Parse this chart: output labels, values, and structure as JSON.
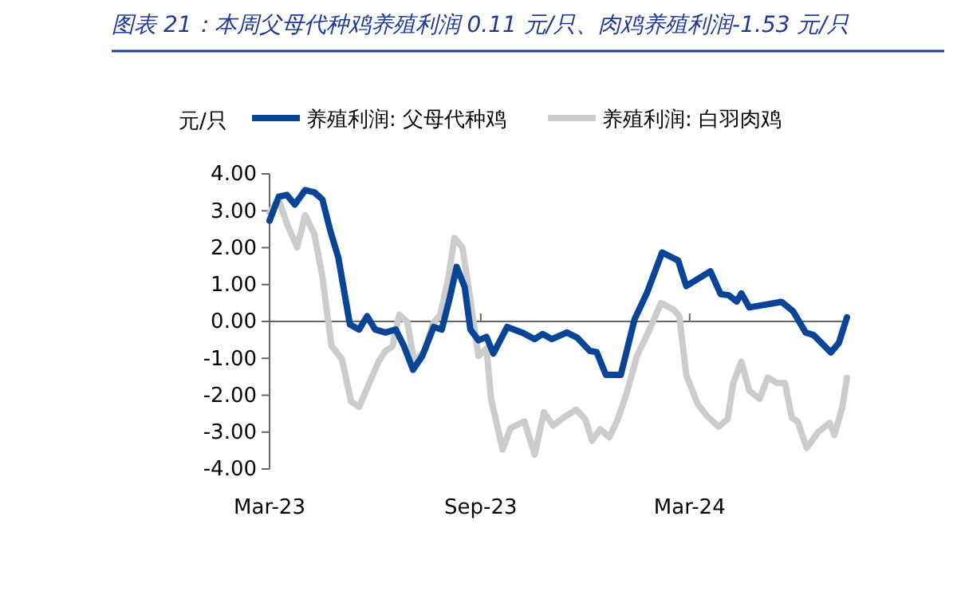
{
  "chart_data": {
    "type": "line",
    "title": "图表 21：本周父母代种鸡养殖利润 0.11 元/只、肉鸡养殖利润-1.53 元/只",
    "ylabel": "元/只",
    "legend": "top",
    "marker": "none",
    "line_style": "solid",
    "xlim": [
      "2023-03-01",
      "2024-07-16"
    ],
    "xticks": [
      {
        "value": "2023-03-01",
        "label": "Mar-23"
      },
      {
        "value": "2023-09-01",
        "label": "Sep-23"
      },
      {
        "value": "2024-03-01",
        "label": "Mar-24"
      }
    ],
    "ylim": [
      -4,
      4
    ],
    "yticks": [
      {
        "value": 4,
        "label": "4.00"
      },
      {
        "value": 3,
        "label": "3.00"
      },
      {
        "value": 2,
        "label": "2.00"
      },
      {
        "value": 1,
        "label": "1.00"
      },
      {
        "value": 0,
        "label": "0.00"
      },
      {
        "value": -1,
        "label": "-1.00"
      },
      {
        "value": -2,
        "label": "-2.00"
      },
      {
        "value": -3,
        "label": "-3.00"
      },
      {
        "value": -4,
        "label": "-4.00"
      }
    ],
    "series": [
      {
        "name": "养殖利润: 父母代种鸡",
        "color": "#0a4595",
        "x": [
          "2023-03-01",
          "2023-03-09",
          "2023-03-16",
          "2023-03-23",
          "2023-04-01",
          "2023-04-09",
          "2023-04-16",
          "2023-04-23",
          "2023-04-30",
          "2023-05-10",
          "2023-05-18",
          "2023-05-25",
          "2023-06-01",
          "2023-06-10",
          "2023-06-19",
          "2023-06-26",
          "2023-07-04",
          "2023-07-12",
          "2023-07-22",
          "2023-07-29",
          "2023-08-05",
          "2023-08-11",
          "2023-08-18",
          "2023-08-23",
          "2023-08-30",
          "2023-09-06",
          "2023-09-12",
          "2023-09-24",
          "2023-10-07",
          "2023-10-18",
          "2023-10-25",
          "2023-11-02",
          "2023-11-15",
          "2023-11-24",
          "2023-12-05",
          "2023-12-11",
          "2023-12-19",
          "2024-01-01",
          "2024-01-13",
          "2024-01-24",
          "2024-02-06",
          "2024-02-20",
          "2024-02-27",
          "2024-03-19",
          "2024-03-28",
          "2024-04-04",
          "2024-04-11",
          "2024-04-15",
          "2024-04-22",
          "2024-05-20",
          "2024-05-30",
          "2024-06-10",
          "2024-06-17",
          "2024-07-02",
          "2024-07-09",
          "2024-07-16"
        ],
        "values": [
          2.73,
          3.38,
          3.43,
          3.17,
          3.56,
          3.5,
          3.31,
          2.45,
          1.72,
          -0.08,
          -0.22,
          0.14,
          -0.22,
          -0.3,
          -0.22,
          -0.66,
          -1.31,
          -0.94,
          -0.15,
          -0.22,
          0.64,
          1.48,
          0.93,
          -0.22,
          -0.51,
          -0.42,
          -0.87,
          -0.15,
          -0.3,
          -0.48,
          -0.34,
          -0.48,
          -0.3,
          -0.44,
          -0.8,
          -0.83,
          -1.45,
          -1.45,
          0.06,
          0.79,
          1.87,
          1.65,
          0.96,
          1.36,
          0.74,
          0.71,
          0.54,
          0.76,
          0.38,
          0.53,
          0.28,
          -0.3,
          -0.37,
          -0.84,
          -0.58,
          0.11
        ]
      },
      {
        "name": "养殖利润: 白羽肉鸡",
        "color": "#cccccc",
        "x": [
          "2023-03-01",
          "2023-03-09",
          "2023-03-16",
          "2023-03-25",
          "2023-04-01",
          "2023-04-09",
          "2023-04-16",
          "2023-04-24",
          "2023-05-03",
          "2023-05-11",
          "2023-05-18",
          "2023-05-28",
          "2023-06-04",
          "2023-06-10",
          "2023-06-16",
          "2023-06-22",
          "2023-06-29",
          "2023-07-05",
          "2023-07-14",
          "2023-07-21",
          "2023-07-28",
          "2023-08-04",
          "2023-08-09",
          "2023-08-16",
          "2023-08-23",
          "2023-08-30",
          "2023-09-06",
          "2023-09-10",
          "2023-09-20",
          "2023-09-27",
          "2023-10-09",
          "2023-10-18",
          "2023-10-26",
          "2023-11-03",
          "2023-11-12",
          "2023-11-23",
          "2023-12-01",
          "2023-12-07",
          "2023-12-14",
          "2023-12-22",
          "2023-12-29",
          "2024-01-06",
          "2024-01-15",
          "2024-01-26",
          "2024-02-05",
          "2024-02-16",
          "2024-02-21",
          "2024-02-27",
          "2024-03-08",
          "2024-03-16",
          "2024-03-26",
          "2024-04-03",
          "2024-04-08",
          "2024-04-15",
          "2024-04-22",
          "2024-05-01",
          "2024-05-08",
          "2024-05-16",
          "2024-05-23",
          "2024-05-29",
          "2024-06-03",
          "2024-06-11",
          "2024-06-21",
          "2024-07-01",
          "2024-07-05",
          "2024-07-12",
          "2024-07-16"
        ],
        "values": [
          2.95,
          3.31,
          2.66,
          2.01,
          2.88,
          2.37,
          1.22,
          -0.66,
          -1.02,
          -2.17,
          -2.32,
          -1.59,
          -1.09,
          -0.8,
          -0.68,
          0.18,
          -0.01,
          -1.09,
          -0.8,
          -0.08,
          0.21,
          1.22,
          2.26,
          2.01,
          0.57,
          -0.94,
          -0.73,
          -2.1,
          -3.47,
          -2.89,
          -2.71,
          -3.61,
          -2.46,
          -2.82,
          -2.61,
          -2.39,
          -2.65,
          -3.23,
          -2.92,
          -3.14,
          -2.68,
          -1.96,
          -0.94,
          -0.22,
          0.5,
          0.32,
          0.14,
          -1.45,
          -2.24,
          -2.56,
          -2.85,
          -2.65,
          -1.67,
          -1.09,
          -1.88,
          -2.1,
          -1.52,
          -1.67,
          -1.67,
          -2.61,
          -2.71,
          -3.43,
          -3.0,
          -2.75,
          -3.08,
          -2.32,
          -1.53
        ]
      }
    ]
  }
}
